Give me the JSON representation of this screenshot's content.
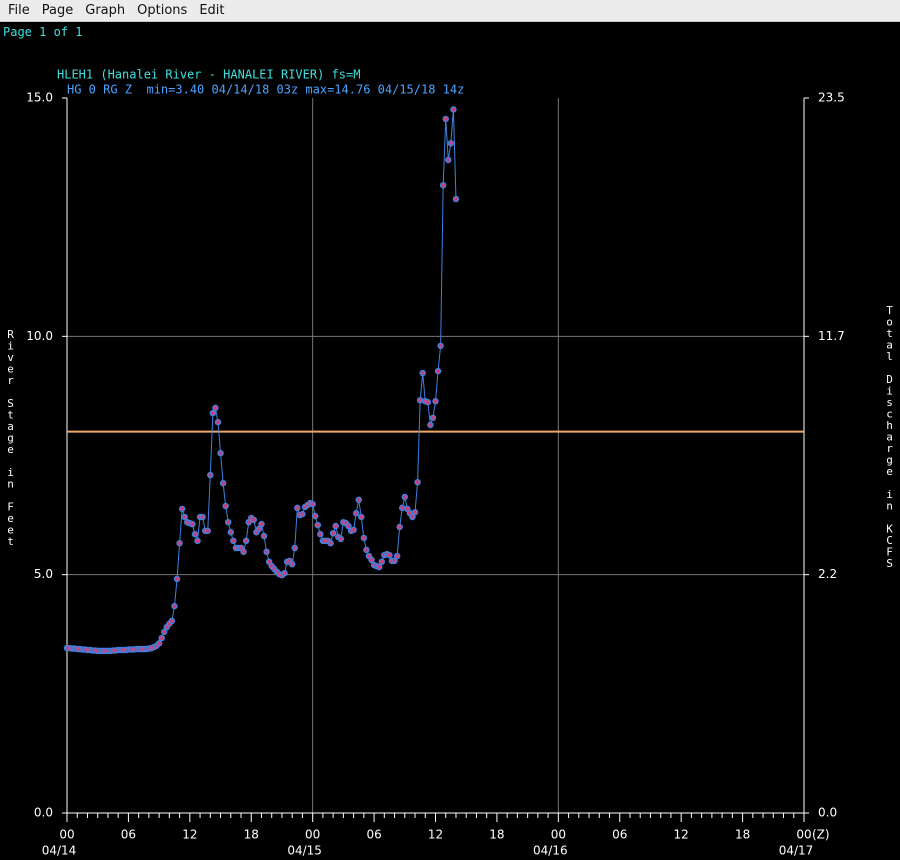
{
  "menu": [
    "File",
    "Page",
    "Graph",
    "Options",
    "Edit"
  ],
  "page_label": "Page 1 of 1",
  "chart_data": {
    "type": "line",
    "title": "HLEH1 (Hanalei River - HANALEI RIVER) fs=M",
    "subtitle": "HG 0 RG Z  min=3.40 04/14/18 03z max=14.76 04/15/18 14z",
    "ylabel": "River Stage in Feet",
    "y2label": "Total Discharge in KCFS",
    "x_suffix": "(Z)",
    "xlim": [
      0,
      72
    ],
    "xticks": [
      {
        "value": 0,
        "label": "00"
      },
      {
        "value": 6,
        "label": "06"
      },
      {
        "value": 12,
        "label": "12"
      },
      {
        "value": 18,
        "label": "18"
      },
      {
        "value": 24,
        "label": "00"
      },
      {
        "value": 30,
        "label": "06"
      },
      {
        "value": 36,
        "label": "12"
      },
      {
        "value": 42,
        "label": "18"
      },
      {
        "value": 48,
        "label": "00"
      },
      {
        "value": 54,
        "label": "06"
      },
      {
        "value": 60,
        "label": "12"
      },
      {
        "value": 66,
        "label": "18"
      },
      {
        "value": 72,
        "label": "00"
      }
    ],
    "xminorticks": [
      1,
      2,
      3,
      4,
      5,
      7,
      8,
      9,
      10,
      11,
      13,
      14,
      15,
      16,
      17,
      19,
      20,
      21,
      22,
      23,
      25,
      26,
      27,
      28,
      29,
      31,
      32,
      33,
      34,
      35,
      37,
      38,
      39,
      40,
      41,
      43,
      44,
      45,
      46,
      47,
      49,
      50,
      51,
      52,
      53,
      55,
      56,
      57,
      58,
      59,
      61,
      62,
      63,
      64,
      65,
      67,
      68,
      69,
      70,
      71
    ],
    "date_labels": [
      {
        "value": 0,
        "label": "04/14"
      },
      {
        "value": 24,
        "label": "04/15"
      },
      {
        "value": 48,
        "label": "04/16"
      },
      {
        "value": 72,
        "label": "04/17"
      }
    ],
    "xgrid": [
      24,
      48
    ],
    "ylim": [
      0,
      15
    ],
    "yticks": [
      {
        "value": 0,
        "label": "0.0"
      },
      {
        "value": 5,
        "label": "5.0"
      },
      {
        "value": 10,
        "label": "10.0"
      },
      {
        "value": 15,
        "label": "15.0"
      }
    ],
    "ygrid": [
      5,
      10
    ],
    "y2ticks": [
      {
        "value": 0,
        "label": "0.0",
        "stage": 0
      },
      {
        "value": 2.2,
        "label": "2.2",
        "stage": 5
      },
      {
        "value": 11.7,
        "label": "11.7",
        "stage": 10
      },
      {
        "value": 23.5,
        "label": "23.5",
        "stage": 15
      }
    ],
    "flood_stage": {
      "value": 8,
      "color": "#f0a868"
    },
    "x": [
      0,
      0.25,
      0.5,
      0.75,
      1,
      1.25,
      1.5,
      1.75,
      2,
      2.25,
      2.5,
      2.75,
      3,
      3.25,
      3.5,
      3.75,
      4,
      4.25,
      4.5,
      4.75,
      5,
      5.25,
      5.5,
      5.75,
      6,
      6.25,
      6.5,
      6.75,
      7,
      7.25,
      7.5,
      7.75,
      8,
      8.25,
      8.5,
      8.75,
      9,
      9.25,
      9.5,
      9.75,
      10,
      10.25,
      10.5,
      10.75,
      11,
      11.25,
      11.5,
      11.75,
      12,
      12.25,
      12.5,
      12.75,
      13,
      13.25,
      13.5,
      13.75,
      14,
      14.25,
      14.5,
      14.75,
      15,
      15.25,
      15.5,
      15.75,
      16,
      16.25,
      16.5,
      16.75,
      17,
      17.25,
      17.5,
      17.75,
      18,
      18.25,
      18.5,
      18.75,
      19,
      19.25,
      19.5,
      19.75,
      20,
      20.25,
      20.5,
      20.75,
      21,
      21.25,
      21.5,
      21.75,
      22,
      22.25,
      22.5,
      22.75,
      23,
      23.25,
      23.5,
      23.75,
      24,
      24.25,
      24.5,
      24.75,
      25,
      25.25,
      25.5,
      25.75,
      26,
      26.25,
      26.5,
      26.75,
      27,
      27.25,
      27.5,
      27.75,
      28,
      28.25,
      28.5,
      28.75,
      29,
      29.25,
      29.5,
      29.75,
      30,
      30.25,
      30.5,
      30.75,
      31,
      31.25,
      31.5,
      31.75,
      32,
      32.25,
      32.5,
      32.75,
      33,
      33.25,
      33.5,
      33.75,
      34,
      34.25,
      34.5,
      34.75,
      35,
      35.25,
      35.5,
      35.75,
      36,
      36.25,
      36.5,
      36.75,
      37,
      37.25,
      37.5,
      37.75,
      38
    ],
    "series": [
      {
        "color": "#3d82e0",
        "marker_color": "#c8407a",
        "values": [
          3.46,
          3.46,
          3.45,
          3.45,
          3.44,
          3.44,
          3.43,
          3.43,
          3.42,
          3.42,
          3.41,
          3.41,
          3.4,
          3.4,
          3.4,
          3.4,
          3.4,
          3.4,
          3.41,
          3.41,
          3.42,
          3.42,
          3.42,
          3.42,
          3.43,
          3.43,
          3.43,
          3.44,
          3.44,
          3.44,
          3.44,
          3.44,
          3.45,
          3.46,
          3.48,
          3.51,
          3.56,
          3.67,
          3.8,
          3.9,
          3.97,
          4.03,
          4.34,
          4.91,
          5.66,
          6.38,
          6.21,
          6.1,
          6.08,
          6.06,
          5.85,
          5.71,
          6.21,
          6.21,
          5.92,
          5.92,
          7.09,
          8.39,
          8.5,
          8.2,
          7.55,
          6.92,
          6.44,
          6.1,
          5.89,
          5.71,
          5.56,
          5.56,
          5.56,
          5.48,
          5.71,
          6.1,
          6.19,
          6.15,
          5.89,
          5.96,
          6.06,
          5.81,
          5.48,
          5.27,
          5.18,
          5.12,
          5.06,
          5.01,
          4.99,
          5.03,
          5.27,
          5.29,
          5.22,
          5.56,
          6.4,
          6.25,
          6.27,
          6.42,
          6.46,
          6.5,
          6.48,
          6.23,
          6.04,
          5.85,
          5.71,
          5.71,
          5.71,
          5.66,
          5.87,
          6.02,
          5.79,
          5.75,
          6.1,
          6.08,
          6.02,
          5.92,
          5.94,
          6.29,
          6.57,
          6.21,
          5.77,
          5.52,
          5.39,
          5.31,
          5.2,
          5.18,
          5.16,
          5.27,
          5.41,
          5.43,
          5.41,
          5.29,
          5.29,
          5.39,
          6.0,
          6.4,
          6.63,
          6.38,
          6.29,
          6.21,
          6.31,
          6.94,
          8.66,
          9.23,
          8.64,
          8.62,
          8.14,
          8.29,
          8.64,
          9.27,
          9.8,
          13.17,
          14.56,
          13.7,
          14.05,
          14.76,
          12.88
        ]
      }
    ]
  }
}
